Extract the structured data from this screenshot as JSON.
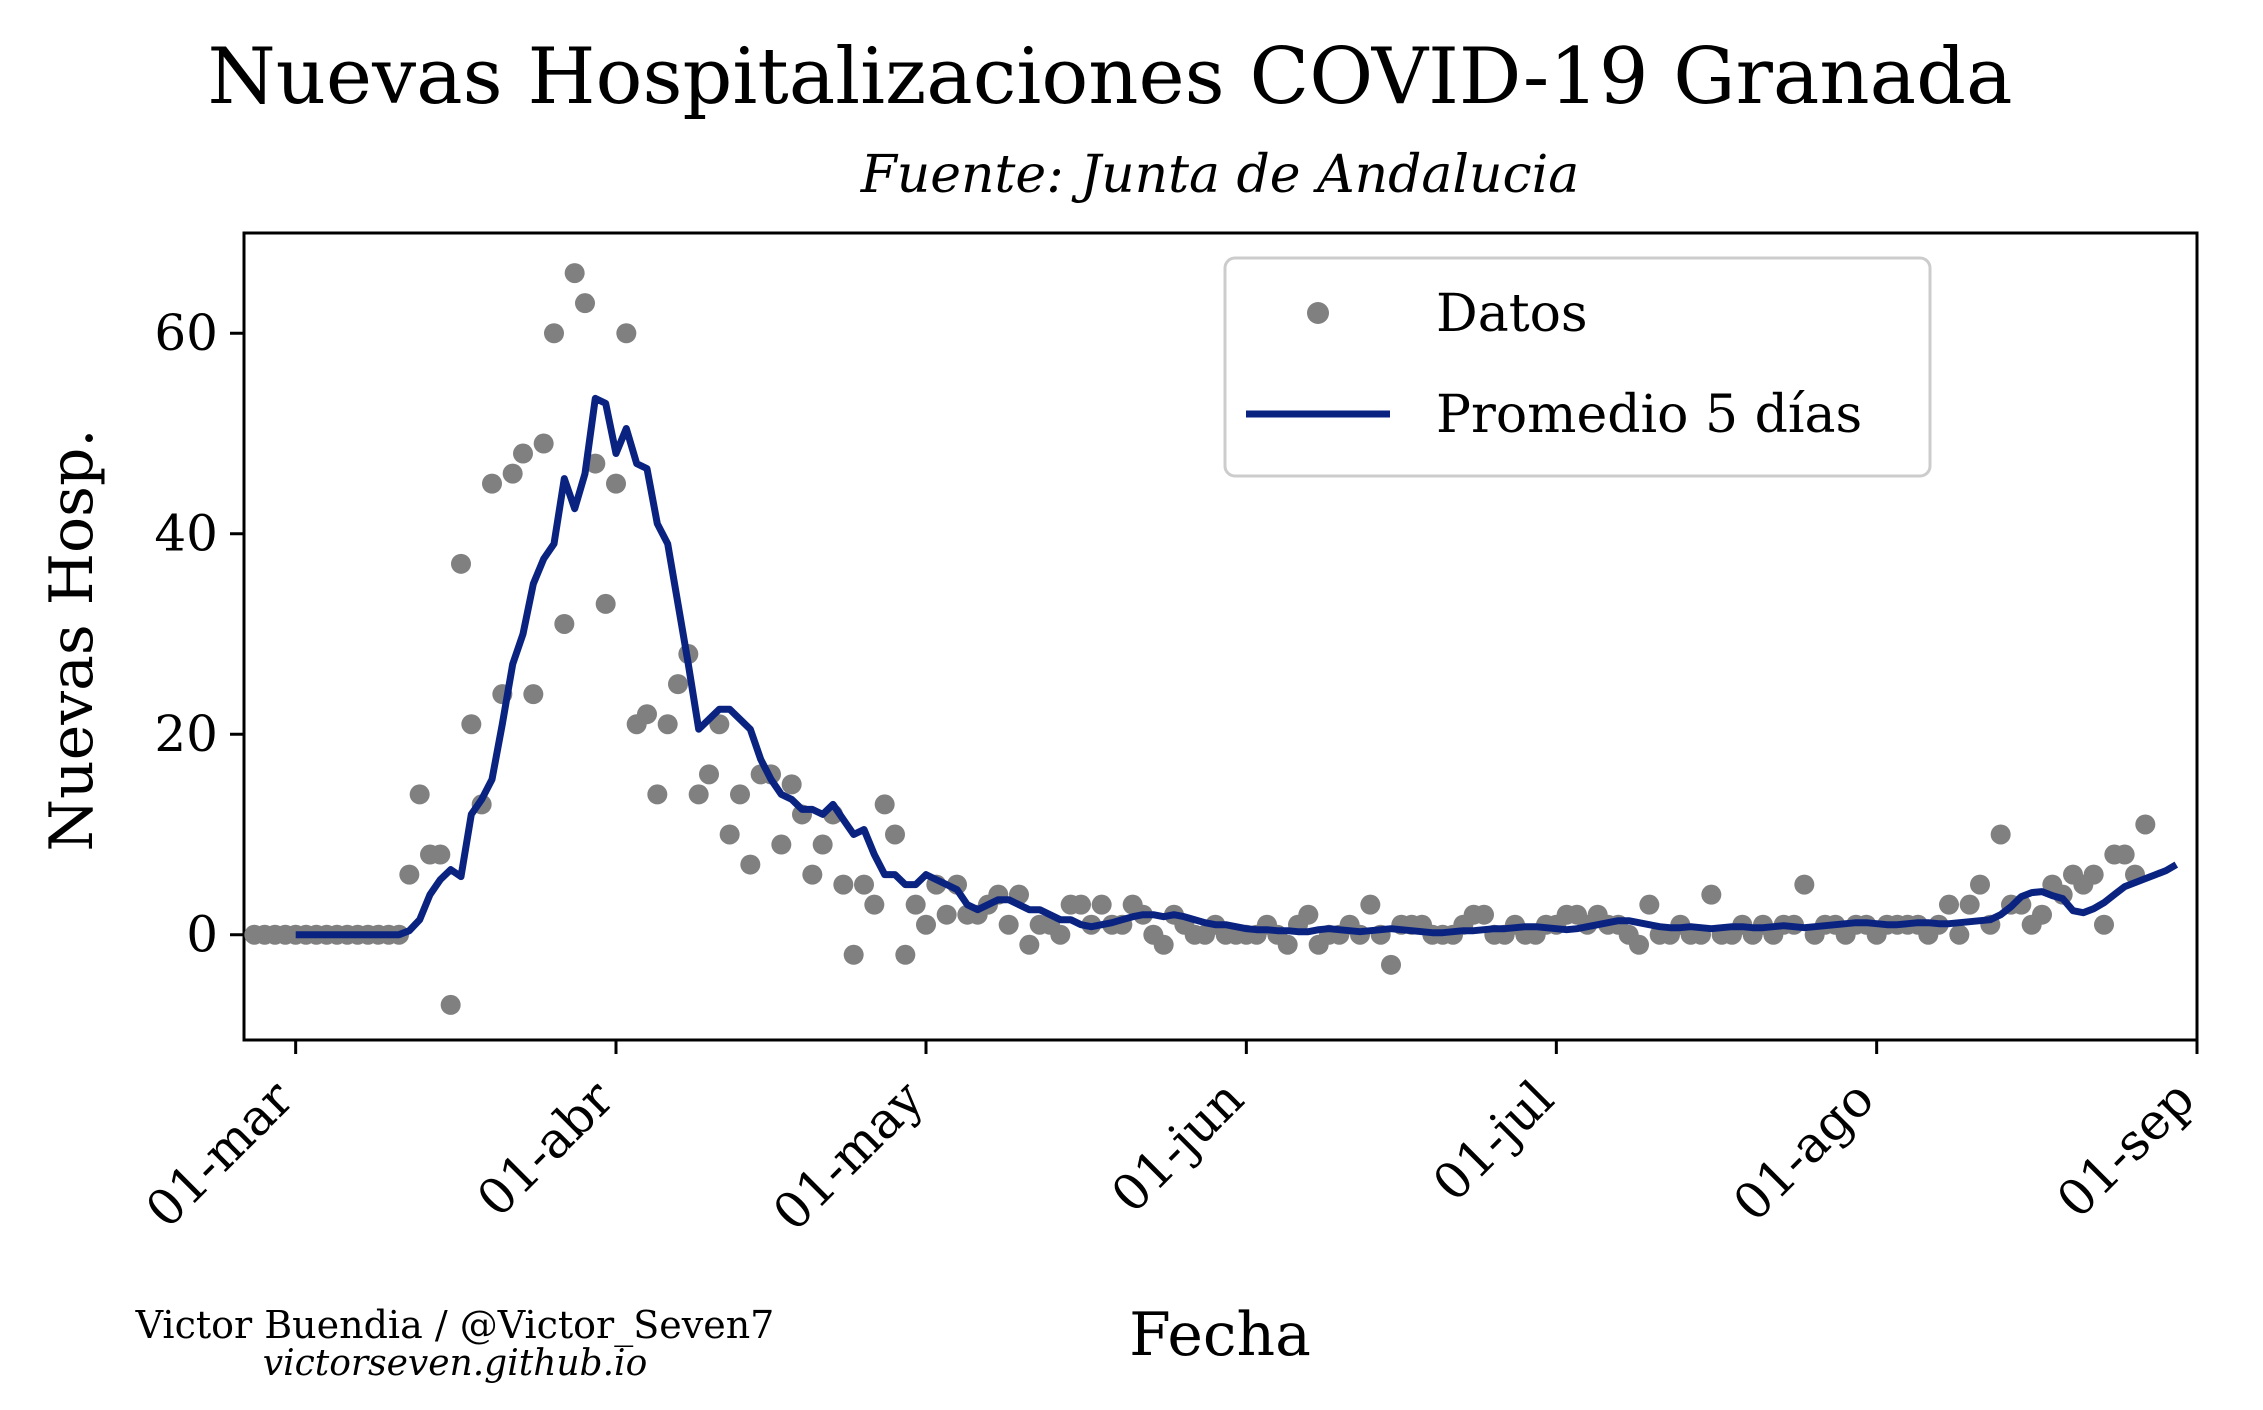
{
  "chart_data": {
    "type": "scatter",
    "title": "Nuevas Hospitalizaciones COVID-19 Granada",
    "subtitle": "Fuente: Junta de Andalucia",
    "xlabel": "Fecha",
    "ylabel": "Nuevas Hosp.",
    "x_start_date": "2020-02-26",
    "xlim": [
      "2020-02-25",
      "2020-09-01"
    ],
    "ylim": [
      -10.5,
      70
    ],
    "x_ticks": [
      "01-mar",
      "01-abr",
      "01-may",
      "01-jun",
      "01-jul",
      "01-ago",
      "01-sep"
    ],
    "x_tick_dates": [
      "2020-03-01",
      "2020-04-01",
      "2020-05-01",
      "2020-06-01",
      "2020-07-01",
      "2020-08-01",
      "2020-09-01"
    ],
    "y_ticks": [
      "0",
      "20",
      "40",
      "60"
    ],
    "y_tick_values": [
      0,
      20,
      40,
      60
    ],
    "grid": false,
    "legend_position": "top-right",
    "series": [
      {
        "name": "Datos",
        "kind": "scatter",
        "color": "#808080",
        "values": [
          0,
          0,
          0,
          0,
          0,
          0,
          0,
          0,
          0,
          0,
          0,
          0,
          0,
          0,
          0,
          6,
          14,
          8,
          8,
          -7,
          37,
          21,
          13,
          45,
          24,
          46,
          48,
          24,
          49,
          60,
          31,
          66,
          63,
          47,
          33,
          45,
          60,
          21,
          22,
          14,
          21,
          25,
          28,
          14,
          16,
          21,
          10,
          14,
          7,
          16,
          16,
          9,
          15,
          12,
          6,
          9,
          12,
          5,
          -2,
          5,
          3,
          13,
          10,
          -2,
          3,
          1,
          5,
          2,
          5,
          2,
          2,
          3,
          4,
          1,
          4,
          -1,
          1,
          1,
          0,
          3,
          3,
          1,
          3,
          1,
          1,
          3,
          2,
          0,
          -1,
          2,
          1,
          0,
          0,
          1,
          0,
          0,
          0,
          0,
          1,
          0,
          -1,
          1,
          2,
          -1,
          0,
          0,
          1,
          0,
          3,
          0,
          -3,
          1,
          1,
          1,
          0,
          0,
          0,
          1,
          2,
          2,
          0,
          0,
          1,
          0,
          0,
          1,
          1,
          2,
          2,
          1,
          2,
          1,
          1,
          0,
          -1,
          3,
          0,
          0,
          1,
          0,
          0,
          4,
          0,
          0,
          1,
          0,
          1,
          0,
          1,
          1,
          5,
          0,
          1,
          1,
          0,
          1,
          1,
          0,
          1,
          1,
          1,
          1,
          0,
          1,
          3,
          0,
          3,
          5,
          1,
          10,
          3,
          3,
          1,
          2,
          5,
          4,
          6,
          5,
          6,
          1,
          8,
          8,
          6,
          11
        ]
      },
      {
        "name": "Promedio 5 días",
        "kind": "line",
        "color": "#0a2380",
        "x_offset": 4,
        "values": [
          0,
          0,
          0,
          0,
          0,
          0,
          0,
          0,
          0,
          0,
          0,
          0.4,
          1.5,
          4,
          5.5,
          6.5,
          5.8,
          12,
          13.5,
          15.5,
          21,
          27,
          30,
          35,
          37.5,
          39,
          45.5,
          42.5,
          46,
          53.5,
          53,
          48,
          50.5,
          47,
          46.5,
          41,
          39,
          33,
          27,
          20.5,
          21.5,
          22.5,
          22.5,
          21.5,
          20.5,
          17.5,
          15.5,
          14,
          13.5,
          12.5,
          12.5,
          12,
          13,
          11.5,
          10,
          10.5,
          8,
          6,
          6,
          5,
          5,
          6,
          5.5,
          5,
          4.5,
          3,
          2.5,
          3,
          3.5,
          3.5,
          3,
          2.5,
          2.5,
          2,
          1.5,
          1.5,
          1,
          0.8,
          1,
          1.2,
          1.5,
          1.8,
          2,
          2,
          1.8,
          2,
          1.8,
          1.5,
          1.2,
          1,
          1,
          0.8,
          0.6,
          0.5,
          0.5,
          0.4,
          0.4,
          0.3,
          0.3,
          0.5,
          0.6,
          0.5,
          0.4,
          0.3,
          0.4,
          0.5,
          0.6,
          0.5,
          0.4,
          0.3,
          0.2,
          0.2,
          0.3,
          0.4,
          0.4,
          0.5,
          0.6,
          0.6,
          0.7,
          0.8,
          0.8,
          0.7,
          0.6,
          0.5,
          0.6,
          0.8,
          1,
          1.2,
          1.4,
          1.4,
          1.2,
          1,
          0.8,
          0.7,
          0.7,
          0.8,
          0.7,
          0.6,
          0.7,
          0.8,
          0.8,
          0.7,
          0.7,
          0.8,
          0.9,
          0.8,
          0.7,
          0.8,
          0.9,
          1,
          1.1,
          1.2,
          1.2,
          1.1,
          1,
          1,
          1.1,
          1.2,
          1.2,
          1.1,
          1.1,
          1.2,
          1.3,
          1.4,
          1.5,
          2,
          2.8,
          3.8,
          4.2,
          4.3,
          3.9,
          3.6,
          2.4,
          2.2,
          2.6,
          3.2,
          4,
          4.8,
          5.2,
          5.6,
          6,
          6.4,
          7
        ]
      }
    ]
  },
  "legend": {
    "items": [
      {
        "label": "Datos",
        "marker": "dot"
      },
      {
        "label": "Promedio 5 días",
        "marker": "line"
      }
    ]
  },
  "credits": {
    "author": "Victor Buendia / @Victor_Seven7",
    "website": "victorseven.github.io"
  }
}
